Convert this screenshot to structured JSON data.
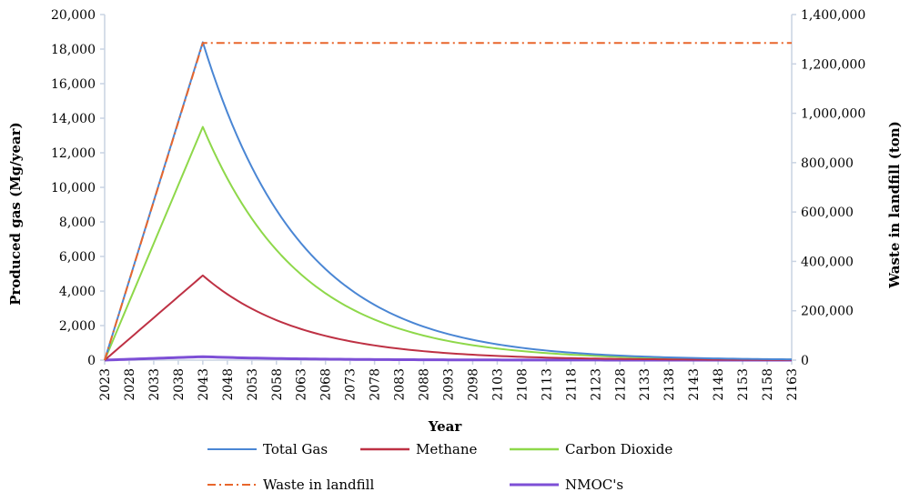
{
  "chart_data": {
    "type": "line",
    "xlabel": "Year",
    "ylabel_left": "Produced gas (Mg/year)",
    "ylabel_right": "Waste in landfill (ton)",
    "x_ticks": [
      "2023",
      "2028",
      "2033",
      "2038",
      "2043",
      "2048",
      "2053",
      "2058",
      "2063",
      "2068",
      "2073",
      "2078",
      "2083",
      "2088",
      "2093",
      "2098",
      "2103",
      "2108",
      "2113",
      "2118",
      "2123",
      "2128",
      "2133",
      "2138",
      "2143",
      "2148",
      "2153",
      "2158",
      "2163"
    ],
    "x_range": [
      2023,
      2163
    ],
    "ylim_left": [
      0,
      20000
    ],
    "ylim_right": [
      0,
      1400000
    ],
    "y_ticks_left": [
      "0",
      "2,000",
      "4,000",
      "6,000",
      "8,000",
      "10,000",
      "12,000",
      "14,000",
      "16,000",
      "18,000",
      "20,000"
    ],
    "y_ticks_right": [
      "0",
      "200,000",
      "400,000",
      "600,000",
      "800,000",
      "1,000,000",
      "1,200,000",
      "1,400,000"
    ],
    "legend_position": "bottom",
    "series": [
      {
        "name": "Total Gas",
        "axis": "left",
        "color": "#4a86d4",
        "style": "solid",
        "peak_year": 2043,
        "peak_value": 18400,
        "decay_rate": 0.05,
        "x": [
          2023,
          2043,
          2163
        ],
        "y": [
          0,
          18400,
          45
        ]
      },
      {
        "name": "Methane",
        "axis": "left",
        "color": "#be3144",
        "style": "solid",
        "peak_year": 2043,
        "peak_value": 4900,
        "decay_rate": 0.05,
        "x": [
          2023,
          2043,
          2163
        ],
        "y": [
          0,
          4900,
          12
        ]
      },
      {
        "name": "Carbon Dioxide",
        "axis": "left",
        "color": "#8ed84a",
        "style": "solid",
        "peak_year": 2043,
        "peak_value": 13500,
        "decay_rate": 0.05,
        "x": [
          2023,
          2043,
          2163
        ],
        "y": [
          0,
          13500,
          33
        ]
      },
      {
        "name": "Waste in landfill",
        "axis": "right",
        "color": "#e8662c",
        "style": "dashdot",
        "peak_year": 2043,
        "peak_value": 1285000,
        "decay_rate": 0,
        "x": [
          2023,
          2043,
          2163
        ],
        "y": [
          0,
          1285000,
          1285000
        ]
      },
      {
        "name": "NMOC's",
        "axis": "left",
        "color": "#7d4fd6",
        "style": "solid",
        "peak_year": 2043,
        "peak_value": 200,
        "decay_rate": 0.05,
        "x": [
          2023,
          2043,
          2163
        ],
        "y": [
          0,
          200,
          1
        ]
      }
    ]
  }
}
